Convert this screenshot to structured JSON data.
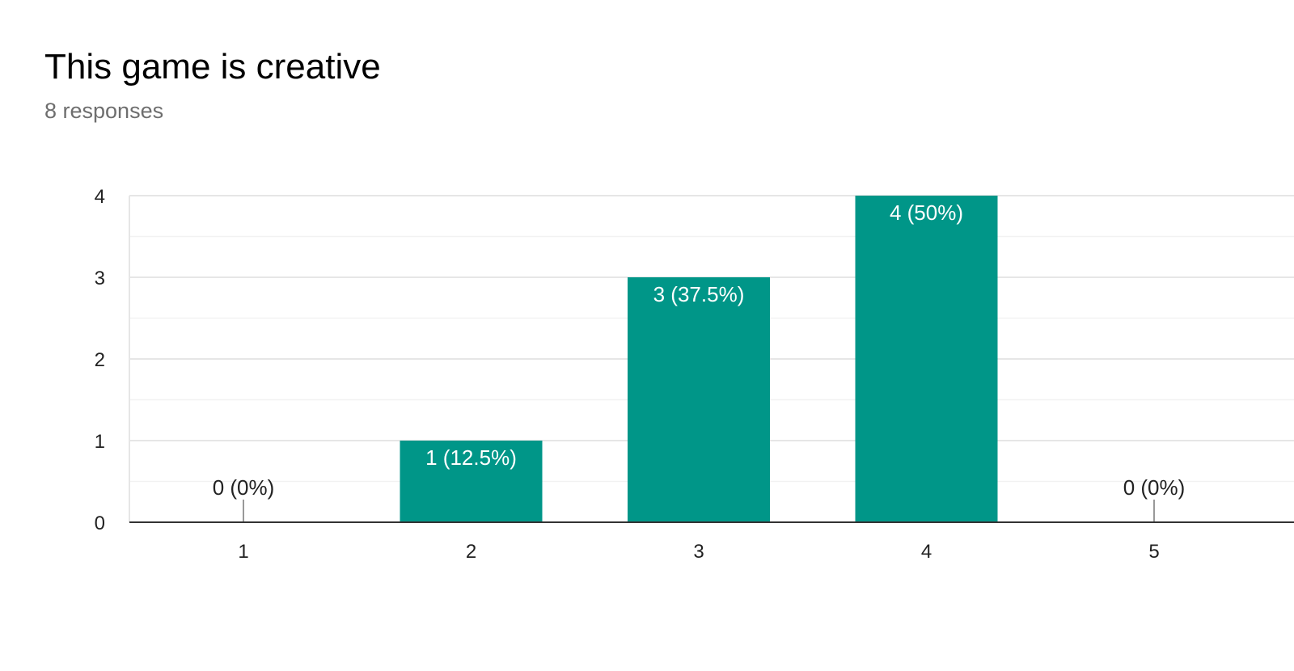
{
  "header": {
    "title": "This game is creative",
    "subtitle": "8 responses"
  },
  "colors": {
    "bar": "#009688",
    "grid_major": "#e6e6e6",
    "grid_minor": "#f2f2f2",
    "axis": "#333333",
    "zero_marker": "#999999",
    "label_inside": "#ffffff",
    "label_outside": "#222222"
  },
  "chart_data": {
    "type": "bar",
    "categories": [
      "1",
      "2",
      "3",
      "4",
      "5"
    ],
    "values": [
      0,
      1,
      3,
      4,
      0
    ],
    "data_labels": [
      "0 (0%)",
      "1 (12.5%)",
      "3 (37.5%)",
      "4 (50%)",
      "0 (0%)"
    ],
    "title": "This game is creative",
    "subtitle": "8 responses",
    "xlabel": "",
    "ylabel": "",
    "ylim": [
      0,
      4
    ],
    "yticks": [
      0,
      1,
      2,
      3,
      4
    ],
    "grid": true,
    "legend": "none"
  }
}
